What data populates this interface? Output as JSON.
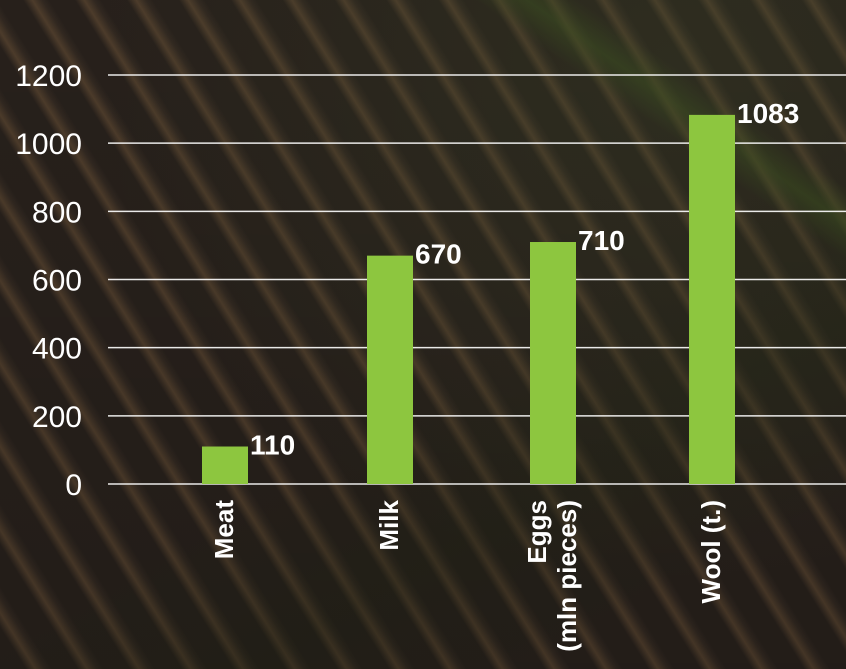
{
  "chart_data": {
    "type": "bar",
    "categories": [
      "Meat",
      "Milk",
      [
        "Eggs",
        "(mln pieces)"
      ],
      "Wool (t.)"
    ],
    "values": [
      110,
      670,
      710,
      1083
    ],
    "ylim": [
      0,
      1200
    ],
    "yticks": [
      0,
      200,
      400,
      600,
      800,
      1000,
      1200
    ],
    "grid": true,
    "bar_color": "#8dc63f",
    "title": "",
    "xlabel": "",
    "ylabel": ""
  }
}
